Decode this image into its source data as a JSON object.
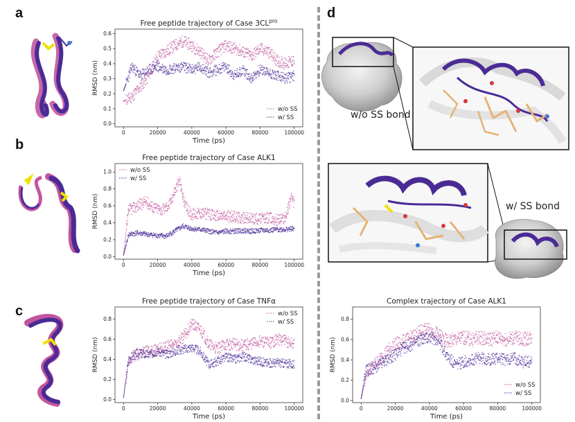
{
  "panel_letters": {
    "a": "a",
    "b": "b",
    "c": "c",
    "d": "d"
  },
  "structure_labels": {
    "without": "w/o SS bond",
    "with": "w/ SS bond"
  },
  "colors": {
    "wo": "#c2559e",
    "w": "#4a2b95",
    "axis": "#333333",
    "grid_text": "#222222"
  },
  "chart_data": [
    {
      "id": "a",
      "type": "scatter",
      "title": "Free peptide trajectory of Case 3CL",
      "title_sup": "pro",
      "xlabel": "Time (ps)",
      "ylabel": "RMSD (nm)",
      "xlim": [
        -5000,
        105000
      ],
      "ylim": [
        -0.02,
        0.63
      ],
      "xticks": [
        0,
        20000,
        40000,
        60000,
        80000,
        100000
      ],
      "yticks": [
        0.0,
        0.1,
        0.2,
        0.3,
        0.4,
        0.5,
        0.6
      ],
      "legend_loc": "lower-right",
      "series": [
        {
          "name": "w/o SS",
          "key": "wo",
          "seed": 11,
          "noise": 0.04,
          "x": [
            0,
            5000,
            10000,
            15000,
            20000,
            25000,
            30000,
            35000,
            40000,
            45000,
            50000,
            55000,
            60000,
            65000,
            70000,
            75000,
            80000,
            85000,
            90000,
            95000,
            100000
          ],
          "y": [
            0.15,
            0.18,
            0.25,
            0.32,
            0.45,
            0.48,
            0.52,
            0.55,
            0.52,
            0.48,
            0.42,
            0.48,
            0.52,
            0.5,
            0.48,
            0.45,
            0.5,
            0.48,
            0.42,
            0.4,
            0.42
          ]
        },
        {
          "name": "w/ SS",
          "key": "w",
          "seed": 23,
          "noise": 0.035,
          "x": [
            0,
            5000,
            10000,
            15000,
            20000,
            25000,
            30000,
            35000,
            40000,
            45000,
            50000,
            55000,
            60000,
            65000,
            70000,
            75000,
            80000,
            85000,
            90000,
            95000,
            100000
          ],
          "y": [
            0.22,
            0.38,
            0.32,
            0.36,
            0.38,
            0.36,
            0.37,
            0.38,
            0.36,
            0.38,
            0.34,
            0.36,
            0.38,
            0.32,
            0.36,
            0.3,
            0.36,
            0.34,
            0.32,
            0.3,
            0.32
          ]
        }
      ]
    },
    {
      "id": "b",
      "type": "scatter",
      "title": "Free peptide trajectory of Case ALK1",
      "title_sup": "",
      "xlabel": "Time (ps)",
      "ylabel": "RMSD (nm)",
      "xlim": [
        -5000,
        105000
      ],
      "ylim": [
        -0.03,
        1.1
      ],
      "xticks": [
        0,
        20000,
        40000,
        60000,
        80000,
        100000
      ],
      "yticks": [
        0.0,
        0.2,
        0.4,
        0.6,
        0.8,
        1.0
      ],
      "legend_loc": "upper-left",
      "series": [
        {
          "name": "w/o SS",
          "key": "wo",
          "seed": 37,
          "noise": 0.07,
          "x": [
            0,
            3000,
            8000,
            13000,
            18000,
            23000,
            27000,
            30000,
            33000,
            36000,
            40000,
            45000,
            50000,
            55000,
            60000,
            65000,
            70000,
            75000,
            80000,
            85000,
            90000,
            95000,
            98000,
            100000
          ],
          "y": [
            0.02,
            0.55,
            0.6,
            0.65,
            0.58,
            0.55,
            0.62,
            0.78,
            0.9,
            0.6,
            0.5,
            0.52,
            0.5,
            0.48,
            0.48,
            0.47,
            0.46,
            0.45,
            0.45,
            0.46,
            0.44,
            0.46,
            0.7,
            0.62
          ]
        },
        {
          "name": "w/ SS",
          "key": "w",
          "seed": 41,
          "noise": 0.03,
          "x": [
            0,
            3000,
            8000,
            15000,
            20000,
            25000,
            30000,
            35000,
            40000,
            45000,
            50000,
            55000,
            60000,
            65000,
            70000,
            75000,
            80000,
            85000,
            90000,
            95000,
            100000
          ],
          "y": [
            0.02,
            0.26,
            0.28,
            0.26,
            0.25,
            0.24,
            0.3,
            0.36,
            0.33,
            0.32,
            0.3,
            0.28,
            0.3,
            0.3,
            0.31,
            0.3,
            0.31,
            0.31,
            0.32,
            0.32,
            0.33
          ]
        }
      ]
    },
    {
      "id": "c",
      "type": "scatter",
      "title": "Free peptide trajectory of Case TNFα",
      "title_sup": "",
      "xlabel": "Time (ps)",
      "ylabel": "RMSD (nm)",
      "xlim": [
        -5000,
        105000
      ],
      "ylim": [
        -0.03,
        0.92
      ],
      "xticks": [
        0,
        20000,
        40000,
        60000,
        80000,
        100000
      ],
      "yticks": [
        0.0,
        0.2,
        0.4,
        0.6,
        0.8
      ],
      "legend_loc": "upper-right",
      "series": [
        {
          "name": "w/o SS",
          "key": "wo",
          "seed": 53,
          "noise": 0.06,
          "x": [
            0,
            3000,
            8000,
            15000,
            20000,
            25000,
            30000,
            35000,
            40000,
            45000,
            50000,
            55000,
            60000,
            65000,
            70000,
            75000,
            80000,
            85000,
            90000,
            95000,
            100000
          ],
          "y": [
            0.02,
            0.4,
            0.45,
            0.48,
            0.5,
            0.52,
            0.55,
            0.62,
            0.75,
            0.7,
            0.55,
            0.5,
            0.55,
            0.55,
            0.54,
            0.56,
            0.58,
            0.56,
            0.6,
            0.58,
            0.55
          ]
        },
        {
          "name": "w/ SS",
          "key": "w",
          "seed": 67,
          "noise": 0.045,
          "x": [
            0,
            3000,
            8000,
            15000,
            20000,
            25000,
            30000,
            35000,
            40000,
            45000,
            50000,
            55000,
            60000,
            65000,
            70000,
            75000,
            80000,
            85000,
            90000,
            95000,
            100000
          ],
          "y": [
            0.02,
            0.4,
            0.46,
            0.45,
            0.48,
            0.45,
            0.48,
            0.5,
            0.52,
            0.48,
            0.35,
            0.38,
            0.42,
            0.4,
            0.43,
            0.4,
            0.38,
            0.36,
            0.37,
            0.36,
            0.35
          ]
        }
      ]
    },
    {
      "id": "d",
      "type": "scatter",
      "title": "Complex trajectory of Case ALK1",
      "title_sup": "",
      "xlabel": "Time (ps)",
      "ylabel": "RMSD (nm)",
      "xlim": [
        -5000,
        105000
      ],
      "ylim": [
        -0.02,
        0.92
      ],
      "xticks": [
        0,
        20000,
        40000,
        60000,
        80000,
        100000
      ],
      "yticks": [
        0.0,
        0.2,
        0.4,
        0.6,
        0.8
      ],
      "legend_loc": "lower-right",
      "series": [
        {
          "name": "w/o SS",
          "key": "wo",
          "seed": 79,
          "noise": 0.07,
          "x": [
            0,
            3000,
            8000,
            15000,
            20000,
            25000,
            30000,
            35000,
            40000,
            45000,
            50000,
            55000,
            60000,
            65000,
            70000,
            75000,
            80000,
            85000,
            90000,
            95000,
            100000
          ],
          "y": [
            0.02,
            0.28,
            0.35,
            0.48,
            0.55,
            0.58,
            0.62,
            0.68,
            0.7,
            0.65,
            0.58,
            0.6,
            0.62,
            0.6,
            0.62,
            0.6,
            0.62,
            0.6,
            0.62,
            0.6,
            0.62
          ]
        },
        {
          "name": "w/ SS",
          "key": "w",
          "seed": 91,
          "noise": 0.06,
          "x": [
            0,
            3000,
            8000,
            15000,
            20000,
            25000,
            30000,
            35000,
            40000,
            45000,
            50000,
            55000,
            60000,
            65000,
            70000,
            75000,
            80000,
            85000,
            90000,
            95000,
            100000
          ],
          "y": [
            0.02,
            0.3,
            0.32,
            0.4,
            0.45,
            0.52,
            0.55,
            0.6,
            0.62,
            0.6,
            0.45,
            0.35,
            0.38,
            0.4,
            0.42,
            0.4,
            0.42,
            0.4,
            0.42,
            0.38,
            0.38
          ]
        }
      ]
    }
  ]
}
